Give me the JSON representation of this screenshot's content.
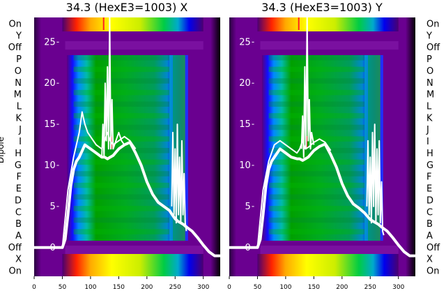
{
  "chart_data": [
    {
      "type": "heatmap",
      "title": "34.3 (HexE3=1003) X",
      "ylabel": "Dipole",
      "xlim": [
        0,
        330
      ],
      "x_ticks": [
        0,
        50,
        100,
        150,
        200,
        250,
        300
      ],
      "overlay_ylim": [
        -3.5,
        28
      ],
      "overlay_y_ticks": [
        0,
        5,
        10,
        15,
        20,
        25
      ],
      "y_categories": [
        "On",
        "X",
        "Off",
        "A",
        "B",
        "C",
        "D",
        "E",
        "F",
        "G",
        "H",
        "I",
        "J",
        "K",
        "L",
        "M",
        "N",
        "O",
        "P",
        "Off",
        "Y",
        "On"
      ],
      "overlay_series": [
        {
          "x": [
            0,
            10,
            20,
            30,
            40,
            50,
            55,
            60,
            65,
            70,
            75,
            80,
            90,
            100,
            110,
            120,
            125,
            130,
            135,
            140,
            145,
            150,
            160,
            170,
            180,
            190,
            200,
            210,
            220,
            230,
            240,
            245,
            250,
            255,
            260,
            265,
            270,
            280,
            290,
            300,
            310,
            320,
            330
          ],
          "y": [
            0,
            0,
            0,
            0,
            0,
            0,
            1,
            4,
            7.5,
            9.5,
            10.5,
            11,
            12.5,
            12,
            11.5,
            11,
            11,
            10.8,
            11,
            11.2,
            11.6,
            12,
            12.5,
            12.8,
            11.5,
            10,
            8,
            6.5,
            5.5,
            5,
            4.5,
            4,
            3.5,
            3.2,
            3,
            2.8,
            2.5,
            2,
            1.2,
            0.3,
            -0.5,
            -1,
            -1
          ]
        },
        {
          "x": [
            50,
            60,
            70,
            80,
            85,
            90,
            95,
            100,
            110,
            120,
            125,
            130,
            135,
            140,
            150,
            160,
            170,
            180
          ],
          "y": [
            0,
            7,
            11,
            14,
            16.5,
            15,
            14,
            13.5,
            12.5,
            12,
            13,
            14,
            13,
            12.5,
            13,
            13.5,
            13,
            12
          ]
        },
        {
          "x": [
            120,
            122,
            124,
            126,
            128,
            130,
            132,
            134,
            136,
            138,
            140,
            150,
            155,
            160
          ],
          "y": [
            11,
            15,
            11,
            20,
            13,
            22,
            12,
            28,
            12,
            18,
            12,
            14,
            13,
            12.5
          ]
        },
        {
          "x": [
            244,
            246,
            248,
            250,
            252,
            254,
            256,
            258,
            260,
            262,
            264,
            266,
            268,
            270
          ],
          "y": [
            5,
            14,
            4,
            12,
            3,
            15,
            4,
            11,
            3,
            13,
            4,
            9,
            3,
            2
          ]
        }
      ]
    },
    {
      "type": "heatmap",
      "title": "34.3 (HexE3=1003) Y",
      "ylabel": "",
      "xlim": [
        0,
        330
      ],
      "x_ticks": [
        0,
        50,
        100,
        150,
        200,
        250,
        300
      ],
      "overlay_ylim": [
        -3.5,
        28
      ],
      "overlay_y_ticks": [
        0,
        5,
        10,
        15,
        20,
        25
      ],
      "y_categories": [
        "On",
        "X",
        "Off",
        "A",
        "B",
        "C",
        "D",
        "E",
        "F",
        "G",
        "H",
        "I",
        "J",
        "K",
        "L",
        "M",
        "N",
        "O",
        "P",
        "Off",
        "Y",
        "On"
      ],
      "overlay_series": [
        {
          "x": [
            0,
            10,
            20,
            30,
            40,
            50,
            55,
            60,
            65,
            70,
            75,
            80,
            90,
            100,
            110,
            120,
            125,
            130,
            135,
            140,
            145,
            150,
            160,
            170,
            180,
            190,
            200,
            210,
            220,
            230,
            240,
            245,
            250,
            255,
            260,
            265,
            270,
            280,
            290,
            300,
            310,
            320,
            330
          ],
          "y": [
            0,
            0,
            0,
            0,
            0,
            0,
            1,
            4,
            7.5,
            9.5,
            10.5,
            11,
            12,
            11.5,
            11,
            10.8,
            10.8,
            10.6,
            10.8,
            11,
            11.4,
            11.8,
            12.3,
            12.6,
            11.3,
            9.8,
            7.8,
            6.3,
            5.3,
            4.8,
            4.2,
            3.8,
            3.4,
            3.2,
            3,
            2.8,
            2.5,
            2,
            1.2,
            0.3,
            -0.5,
            -1,
            -1
          ]
        },
        {
          "x": [
            50,
            60,
            70,
            80,
            90,
            100,
            110,
            120,
            125,
            130,
            135,
            140,
            150,
            160,
            170,
            180
          ],
          "y": [
            0,
            7,
            10.5,
            12.5,
            13,
            12.5,
            12,
            11.5,
            12,
            13,
            12,
            12.2,
            12.8,
            13.2,
            12.8,
            11.8
          ]
        },
        {
          "x": [
            128,
            130,
            132,
            134,
            136,
            138,
            140,
            142,
            144,
            146,
            150
          ],
          "y": [
            12,
            16,
            11,
            22,
            12,
            28,
            13,
            18,
            12,
            14,
            12.5
          ]
        },
        {
          "x": [
            244,
            246,
            248,
            250,
            252,
            254,
            256,
            258,
            260,
            262,
            264,
            266,
            268,
            270,
            272,
            274
          ],
          "y": [
            5,
            13,
            4,
            11,
            3,
            14,
            5,
            15,
            3,
            12,
            4,
            13,
            3,
            8,
            2,
            1.5
          ]
        }
      ]
    }
  ]
}
